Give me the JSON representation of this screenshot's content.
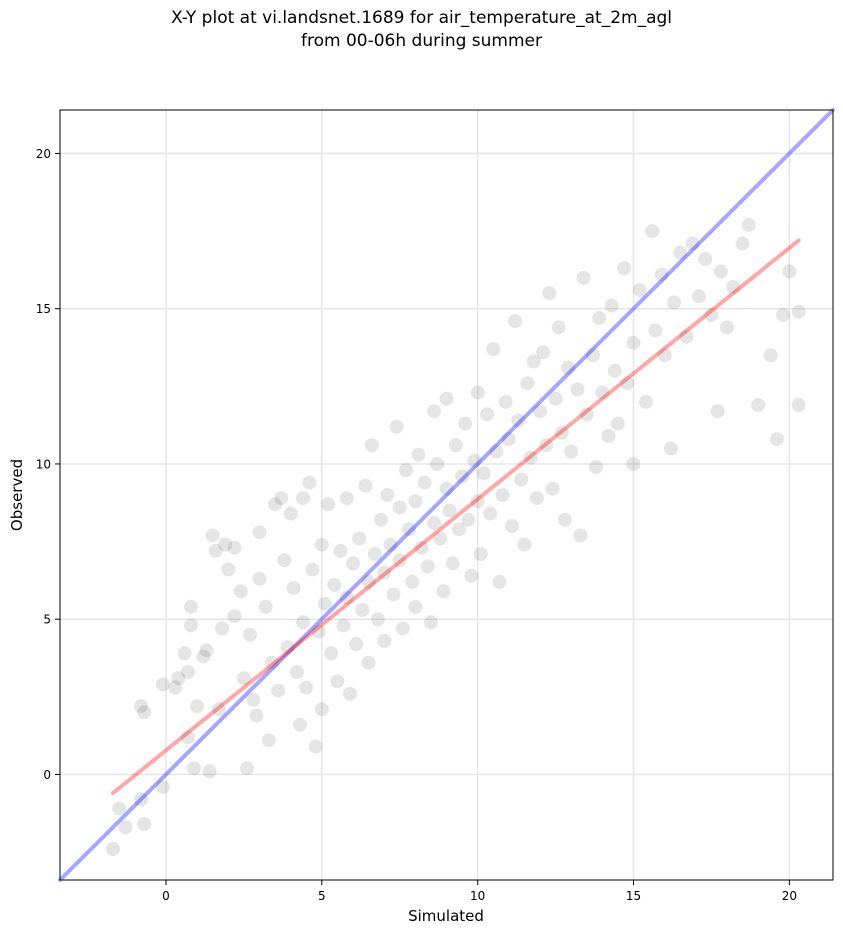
{
  "chart_data": {
    "type": "scatter",
    "title": "X-Y plot at vi.landsnet.1689 for air_temperature_at_2m_agl",
    "subtitle": "from 00-06h during summer",
    "xlabel": "Simulated",
    "ylabel": "Observed",
    "xlim": [
      -3.4,
      21.4
    ],
    "ylim": [
      -3.4,
      21.4
    ],
    "xticks": [
      0,
      5,
      10,
      15,
      20
    ],
    "yticks": [
      0,
      5,
      10,
      15,
      20
    ],
    "grid": true,
    "legend": "none",
    "point_color": "#000000",
    "point_alpha": 0.1,
    "lines": [
      {
        "role": "identity",
        "color": "#0000ff",
        "alpha": 0.35,
        "x": [
          -3.4,
          21.4
        ],
        "y": [
          -3.4,
          21.4
        ]
      },
      {
        "role": "fit",
        "color": "#ff0000",
        "alpha": 0.35,
        "x": [
          -1.7,
          20.3
        ],
        "y": [
          -0.6,
          17.2
        ]
      }
    ],
    "series": [
      {
        "values": [
          [
            -1.7,
            -2.4
          ],
          [
            -1.5,
            -1.1
          ],
          [
            -1.3,
            -1.7
          ],
          [
            -0.8,
            -0.8
          ],
          [
            -0.7,
            -1.6
          ],
          [
            -0.8,
            2.2
          ],
          [
            -0.7,
            2.0
          ],
          [
            -0.1,
            -0.4
          ],
          [
            -0.1,
            2.9
          ],
          [
            0.3,
            2.8
          ],
          [
            0.4,
            3.1
          ],
          [
            0.6,
            3.9
          ],
          [
            0.7,
            3.3
          ],
          [
            0.7,
            1.2
          ],
          [
            0.8,
            5.4
          ],
          [
            0.8,
            4.8
          ],
          [
            0.9,
            0.2
          ],
          [
            1.0,
            2.2
          ],
          [
            1.2,
            3.8
          ],
          [
            1.3,
            4.0
          ],
          [
            1.4,
            0.1
          ],
          [
            1.5,
            7.7
          ],
          [
            1.6,
            7.2
          ],
          [
            1.7,
            2.1
          ],
          [
            1.8,
            4.7
          ],
          [
            1.9,
            7.4
          ],
          [
            2.0,
            6.6
          ],
          [
            2.2,
            7.3
          ],
          [
            2.2,
            5.1
          ],
          [
            2.4,
            5.9
          ],
          [
            2.5,
            3.1
          ],
          [
            2.6,
            0.2
          ],
          [
            2.7,
            4.5
          ],
          [
            2.8,
            2.4
          ],
          [
            2.9,
            1.9
          ],
          [
            3.0,
            6.3
          ],
          [
            3.0,
            7.8
          ],
          [
            3.2,
            5.4
          ],
          [
            3.3,
            1.1
          ],
          [
            3.4,
            3.6
          ],
          [
            3.5,
            8.7
          ],
          [
            3.6,
            2.7
          ],
          [
            3.7,
            8.9
          ],
          [
            3.8,
            6.9
          ],
          [
            3.9,
            4.1
          ],
          [
            4.0,
            8.4
          ],
          [
            4.1,
            6.0
          ],
          [
            4.2,
            3.3
          ],
          [
            4.3,
            1.6
          ],
          [
            4.4,
            8.9
          ],
          [
            4.4,
            4.9
          ],
          [
            4.5,
            2.8
          ],
          [
            4.6,
            9.4
          ],
          [
            4.7,
            6.6
          ],
          [
            4.8,
            0.9
          ],
          [
            4.9,
            4.6
          ],
          [
            5.0,
            7.4
          ],
          [
            5.0,
            2.1
          ],
          [
            5.1,
            5.5
          ],
          [
            5.2,
            8.7
          ],
          [
            5.3,
            3.9
          ],
          [
            5.4,
            6.1
          ],
          [
            5.5,
            3.0
          ],
          [
            5.6,
            7.2
          ],
          [
            5.7,
            4.8
          ],
          [
            5.8,
            8.9
          ],
          [
            5.8,
            5.7
          ],
          [
            5.9,
            2.6
          ],
          [
            6.0,
            6.8
          ],
          [
            6.1,
            4.2
          ],
          [
            6.2,
            7.6
          ],
          [
            6.3,
            5.3
          ],
          [
            6.4,
            9.3
          ],
          [
            6.5,
            6.2
          ],
          [
            6.5,
            3.6
          ],
          [
            6.6,
            10.6
          ],
          [
            6.7,
            7.1
          ],
          [
            6.8,
            5.0
          ],
          [
            6.9,
            8.2
          ],
          [
            7.0,
            6.5
          ],
          [
            7.0,
            4.3
          ],
          [
            7.1,
            9.0
          ],
          [
            7.2,
            7.4
          ],
          [
            7.3,
            5.8
          ],
          [
            7.4,
            11.2
          ],
          [
            7.5,
            8.6
          ],
          [
            7.5,
            6.9
          ],
          [
            7.6,
            4.7
          ],
          [
            7.7,
            9.8
          ],
          [
            7.8,
            7.9
          ],
          [
            7.9,
            6.2
          ],
          [
            8.0,
            8.8
          ],
          [
            8.0,
            5.4
          ],
          [
            8.1,
            10.3
          ],
          [
            8.2,
            7.3
          ],
          [
            8.3,
            9.4
          ],
          [
            8.4,
            6.7
          ],
          [
            8.5,
            4.9
          ],
          [
            8.6,
            11.7
          ],
          [
            8.6,
            8.1
          ],
          [
            8.7,
            10.0
          ],
          [
            8.8,
            7.6
          ],
          [
            8.9,
            5.9
          ],
          [
            9.0,
            9.2
          ],
          [
            9.0,
            12.1
          ],
          [
            9.1,
            8.5
          ],
          [
            9.2,
            6.8
          ],
          [
            9.3,
            10.6
          ],
          [
            9.4,
            7.9
          ],
          [
            9.5,
            9.6
          ],
          [
            9.6,
            11.3
          ],
          [
            9.7,
            8.2
          ],
          [
            9.8,
            6.4
          ],
          [
            9.9,
            10.1
          ],
          [
            10.0,
            12.3
          ],
          [
            10.0,
            8.8
          ],
          [
            10.1,
            7.1
          ],
          [
            10.2,
            9.7
          ],
          [
            10.3,
            11.6
          ],
          [
            10.4,
            8.4
          ],
          [
            10.5,
            13.7
          ],
          [
            10.6,
            10.4
          ],
          [
            10.7,
            6.2
          ],
          [
            10.8,
            9.0
          ],
          [
            10.9,
            12.0
          ],
          [
            11.0,
            10.8
          ],
          [
            11.1,
            8.0
          ],
          [
            11.2,
            14.6
          ],
          [
            11.3,
            11.4
          ],
          [
            11.4,
            9.5
          ],
          [
            11.5,
            7.4
          ],
          [
            11.6,
            12.6
          ],
          [
            11.7,
            10.2
          ],
          [
            11.8,
            13.3
          ],
          [
            11.9,
            8.9
          ],
          [
            12.0,
            11.7
          ],
          [
            12.1,
            13.6
          ],
          [
            12.2,
            10.6
          ],
          [
            12.3,
            15.5
          ],
          [
            12.4,
            9.2
          ],
          [
            12.5,
            12.1
          ],
          [
            12.6,
            14.4
          ],
          [
            12.7,
            11.0
          ],
          [
            12.8,
            8.2
          ],
          [
            12.9,
            13.1
          ],
          [
            13.0,
            10.4
          ],
          [
            13.2,
            12.4
          ],
          [
            13.3,
            7.7
          ],
          [
            13.4,
            16.0
          ],
          [
            13.5,
            11.6
          ],
          [
            13.7,
            13.5
          ],
          [
            13.8,
            9.9
          ],
          [
            13.9,
            14.7
          ],
          [
            14.0,
            12.3
          ],
          [
            14.2,
            10.9
          ],
          [
            14.3,
            15.1
          ],
          [
            14.4,
            13.0
          ],
          [
            14.5,
            11.3
          ],
          [
            14.7,
            16.3
          ],
          [
            14.8,
            12.6
          ],
          [
            15.0,
            10.0
          ],
          [
            15.0,
            13.9
          ],
          [
            15.2,
            15.6
          ],
          [
            15.4,
            12.0
          ],
          [
            15.6,
            17.5
          ],
          [
            15.7,
            14.3
          ],
          [
            15.9,
            16.1
          ],
          [
            16.0,
            13.5
          ],
          [
            16.2,
            10.5
          ],
          [
            16.3,
            15.2
          ],
          [
            16.5,
            16.8
          ],
          [
            16.7,
            14.1
          ],
          [
            16.9,
            17.1
          ],
          [
            17.1,
            15.4
          ],
          [
            17.3,
            16.6
          ],
          [
            17.5,
            14.8
          ],
          [
            17.7,
            11.7
          ],
          [
            17.8,
            16.2
          ],
          [
            18.0,
            14.4
          ],
          [
            18.2,
            15.7
          ],
          [
            18.5,
            17.1
          ],
          [
            18.7,
            17.7
          ],
          [
            19.0,
            11.9
          ],
          [
            19.4,
            13.5
          ],
          [
            19.6,
            10.8
          ],
          [
            19.8,
            14.8
          ],
          [
            20.0,
            16.2
          ],
          [
            20.3,
            11.9
          ],
          [
            20.3,
            14.9
          ]
        ]
      }
    ]
  }
}
